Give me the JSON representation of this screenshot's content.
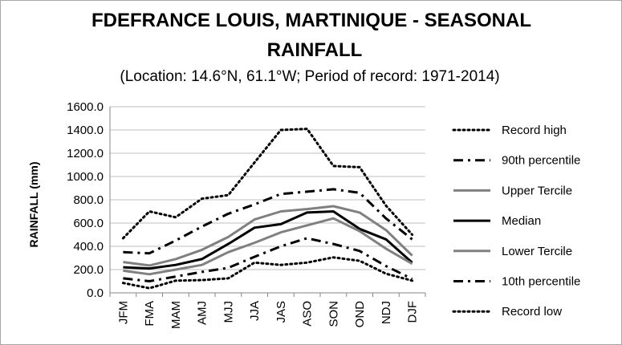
{
  "chart_data": {
    "type": "line",
    "title_line1": "FDEFRANCE LOUIS, MARTINIQUE - SEASONAL",
    "title_line2": "RAINFALL",
    "subtitle": "(Location: 14.6°N, 61.1°W; Period of record: 1971-2014)",
    "xlabel": "",
    "ylabel": "RAINFALL (mm)",
    "ylim": [
      0,
      1600
    ],
    "yticks": [
      "0.0",
      "200.0",
      "400.0",
      "600.0",
      "800.0",
      "1000.0",
      "1200.0",
      "1400.0",
      "1600.0"
    ],
    "grid": true,
    "legend_position": "right",
    "categories": [
      "JFM",
      "FMA",
      "MAM",
      "AMJ",
      "MJJ",
      "JJA",
      "JAS",
      "ASO",
      "SON",
      "OND",
      "NDJ",
      "DJF"
    ],
    "series": [
      {
        "name": "Record high",
        "style": "dotted",
        "color": "#000000",
        "values": [
          470,
          700,
          650,
          810,
          840,
          1120,
          1400,
          1410,
          1090,
          1080,
          750,
          500
        ]
      },
      {
        "name": "90th percentile",
        "style": "dashdot",
        "color": "#000000",
        "values": [
          350,
          340,
          450,
          570,
          680,
          760,
          850,
          870,
          890,
          860,
          640,
          460
        ]
      },
      {
        "name": "Upper Tercile",
        "style": "solid",
        "color": "#808080",
        "values": [
          265,
          235,
          290,
          370,
          480,
          630,
          700,
          720,
          745,
          690,
          540,
          320
        ]
      },
      {
        "name": "Median",
        "style": "solid",
        "color": "#000000",
        "values": [
          220,
          210,
          240,
          290,
          420,
          560,
          590,
          690,
          700,
          550,
          460,
          260
        ]
      },
      {
        "name": "Lower Tercile",
        "style": "solid",
        "color": "#808080",
        "values": [
          190,
          160,
          200,
          240,
          350,
          430,
          520,
          580,
          640,
          530,
          380,
          250
        ]
      },
      {
        "name": "10th percentile",
        "style": "dashdot",
        "color": "#000000",
        "values": [
          125,
          100,
          140,
          180,
          215,
          310,
          400,
          470,
          420,
          360,
          230,
          120
        ]
      },
      {
        "name": "Record low",
        "style": "dotted",
        "color": "#000000",
        "values": [
          85,
          40,
          105,
          110,
          125,
          260,
          240,
          260,
          305,
          275,
          165,
          105
        ]
      }
    ]
  }
}
